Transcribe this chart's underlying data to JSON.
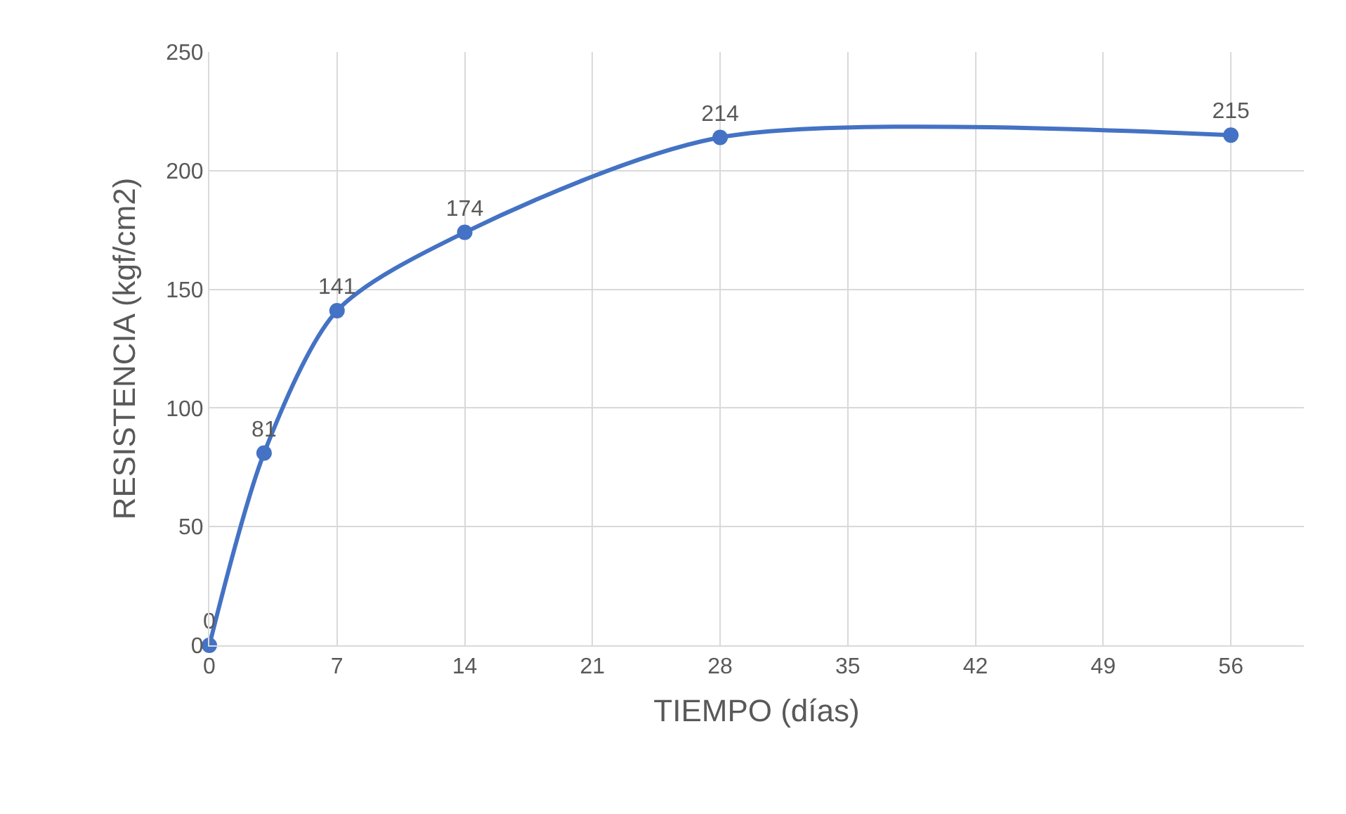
{
  "chart_data": {
    "type": "line",
    "xlabel": "TIEMPO (días)",
    "ylabel": "RESISTENCIA (kgf/cm2)",
    "x": [
      0,
      3,
      7,
      14,
      28,
      56
    ],
    "series": [
      {
        "color": "#4472c4",
        "values": [
          0,
          81,
          141,
          174,
          214,
          215
        ]
      }
    ],
    "xlim": [
      0,
      60
    ],
    "xticks": [
      0,
      7,
      14,
      21,
      28,
      35,
      42,
      49,
      56
    ],
    "ylim": [
      0,
      250
    ],
    "yticks": [
      0,
      50,
      100,
      150,
      200,
      250
    ],
    "grid": true,
    "marker": "circle",
    "line_style": "solid",
    "data_labels": true
  }
}
